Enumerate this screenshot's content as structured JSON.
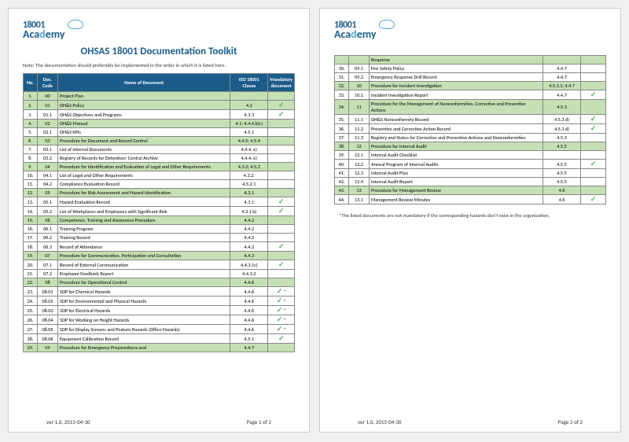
{
  "logo": {
    "prefix": "18001",
    "p1": "Aca",
    "p2": "d",
    "p3": "emy"
  },
  "title": "OHSAS 18001 Documentation Toolkit",
  "note": "Note: The documentation should preferably be implemented in the order in which it is listed here.",
  "headers": {
    "no": "No.",
    "code": "Doc. Code",
    "name": "Name of Document",
    "clause": "ISO 18001 Clause",
    "mand": "Mandatory document"
  },
  "rows1": [
    {
      "no": "1.",
      "code": "00",
      "name": "Project Plan",
      "clause": "",
      "mand": "",
      "hl": true
    },
    {
      "no": "2.",
      "code": "01",
      "name": "OH&S Policy",
      "clause": "4.2",
      "mand": "✓",
      "hl": true
    },
    {
      "no": "3.",
      "code": "01.1",
      "name": "OH&S Objectives and Programs",
      "clause": "4.3.3",
      "mand": "✓",
      "hl": false
    },
    {
      "no": "4.",
      "code": "02",
      "name": "OH&S Manual",
      "clause": "4.1; 4.4.4.b)c)",
      "mand": "",
      "hl": true
    },
    {
      "no": "5.",
      "code": "02.1",
      "name": "OH&S KPIs",
      "clause": "4.5.1",
      "mand": "",
      "hl": false
    },
    {
      "no": "6.",
      "code": "03",
      "name": "Procedure for Document and Record Control",
      "clause": "4.4.5; 4.5.4",
      "mand": "",
      "hl": true
    },
    {
      "no": "7.",
      "code": "03.1",
      "name": "List of Internal Documents",
      "clause": "4.4.4. e)",
      "mand": "",
      "hl": false
    },
    {
      "no": "8.",
      "code": "03.2",
      "name": "Registry of Records for Detention/ Central Archive",
      "clause": "4.4.4. e)",
      "mand": "",
      "hl": false
    },
    {
      "no": "9.",
      "code": "04",
      "name": "Procedure for Identification and Evaluation of Legal and Other Requirements",
      "clause": "4.3.2; 4.5.2",
      "mand": "",
      "hl": true
    },
    {
      "no": "10.",
      "code": "04.1",
      "name": "List of Legal and Other Requirements",
      "clause": "4.3.2.",
      "mand": "",
      "hl": false
    },
    {
      "no": "11.",
      "code": "04.2",
      "name": "Compliance Evaluation Record",
      "clause": "4.5.2.1",
      "mand": "",
      "hl": false
    },
    {
      "no": "12.",
      "code": "05",
      "name": "Procedure for Risk Assessment and Hazard Identification",
      "clause": "4.3.1",
      "mand": "",
      "hl": true
    },
    {
      "no": "13.",
      "code": "05.1",
      "name": "Hazard Evaluation Record",
      "clause": "4.3.1",
      "mand": "✓",
      "hl": false
    },
    {
      "no": "14.",
      "code": "05.2",
      "name": "List of Workplaces and Employees with Significant Risk",
      "clause": "4.3.1 b)",
      "mand": "✓",
      "hl": false
    },
    {
      "no": "15.",
      "code": "06",
      "name": "Competence, Training and Awareness Procedure",
      "clause": "4.4.2",
      "mand": "",
      "hl": true
    },
    {
      "no": "16.",
      "code": "06.1",
      "name": "Training Program",
      "clause": "4.4.2",
      "mand": "",
      "hl": false
    },
    {
      "no": "17.",
      "code": "06.2",
      "name": "Training Record",
      "clause": "4.4.2",
      "mand": "",
      "hl": false
    },
    {
      "no": "18.",
      "code": "06.3",
      "name": "Record of Attendance",
      "clause": "4.4.2",
      "mand": "✓",
      "hl": false
    },
    {
      "no": "19.",
      "code": "07",
      "name": "Procedure for Communication, Participation and Consultation",
      "clause": "4.4.3",
      "mand": "",
      "hl": true
    },
    {
      "no": "20.",
      "code": "07.1",
      "name": "Record of External Communication",
      "clause": "4.4.3.1c)",
      "mand": "✓",
      "hl": false
    },
    {
      "no": "21.",
      "code": "07.2",
      "name": "Employee Feedback Report",
      "clause": "4.4.3.2",
      "mand": "",
      "hl": false
    },
    {
      "no": "22.",
      "code": "08",
      "name": "Procedure for Operational Control",
      "clause": "4.4.6",
      "mand": "",
      "hl": true
    },
    {
      "no": "23.",
      "code": "08.01",
      "name": "SOP for Chemical Hazards",
      "clause": "4.4.6",
      "mand": "✓*",
      "hl": false
    },
    {
      "no": "24.",
      "code": "08.02",
      "name": "SOP for Environmental and Physical Hazards",
      "clause": "4.4.6",
      "mand": "✓*",
      "hl": false
    },
    {
      "no": "25.",
      "code": "08.03",
      "name": "SOP for Electrical Hazards",
      "clause": "4.4.6",
      "mand": "✓*",
      "hl": false
    },
    {
      "no": "26.",
      "code": "08.04",
      "name": "SOP for Working on Height Hazards",
      "clause": "4.4.6",
      "mand": "✓*",
      "hl": false
    },
    {
      "no": "27.",
      "code": "08.05",
      "name": "SOP for Display Screens and Posture Hazards (Office Hazards)",
      "clause": "4.4.6",
      "mand": "✓*",
      "hl": false
    },
    {
      "no": "28.",
      "code": "08.06",
      "name": "Equipment Calibration Record",
      "clause": "4.5.1",
      "mand": "✓",
      "hl": false
    },
    {
      "no": "29.",
      "code": "09",
      "name": "Procedure for Emergency Preparedness and",
      "clause": "4.4.7",
      "mand": "",
      "hl": true
    }
  ],
  "rows2": [
    {
      "no": "",
      "code": "",
      "name": "Response",
      "clause": "",
      "mand": "",
      "hl": true
    },
    {
      "no": "30.",
      "code": "09.1",
      "name": "Fire Safety Policy",
      "clause": "4.4.7",
      "mand": "",
      "hl": false
    },
    {
      "no": "31.",
      "code": "09.2",
      "name": "Emergency Response Drill Record",
      "clause": "4.4.7",
      "mand": "",
      "hl": false
    },
    {
      "no": "32.",
      "code": "10",
      "name": "Procedure for Incident Investigation",
      "clause": "4.5.3.1; 4.4.7",
      "mand": "",
      "hl": true
    },
    {
      "no": "33.",
      "code": "10.1",
      "name": "Incident Investigation Report",
      "clause": "4.4.7",
      "mand": "✓",
      "hl": false
    },
    {
      "no": "34.",
      "code": "11",
      "name": "Procedure for the Management of Nonconformities, Corrective and Preventive Actions",
      "clause": "4.5.3",
      "mand": "",
      "hl": true
    },
    {
      "no": "35.",
      "code": "11.1",
      "name": "OH&S Nonconformity Record",
      "clause": "4.5.3 d)",
      "mand": "✓",
      "hl": false
    },
    {
      "no": "36.",
      "code": "11.2",
      "name": "Preventive and Corrective Action Record",
      "clause": "4.5.3 d)",
      "mand": "✓",
      "hl": false
    },
    {
      "no": "37.",
      "code": "11.3",
      "name": "Registry and Status for Corrective and Preventive Actions and Nonconformities",
      "clause": "4.5.3",
      "mand": "",
      "hl": false
    },
    {
      "no": "38.",
      "code": "12",
      "name": "Procedure for Internal Audit",
      "clause": "4.5.5",
      "mand": "",
      "hl": true
    },
    {
      "no": "39.",
      "code": "12.1",
      "name": "Internal Audit Checklist",
      "clause": "",
      "mand": "",
      "hl": false
    },
    {
      "no": "40.",
      "code": "12.2",
      "name": "Annual Program of Internal Audits",
      "clause": "4.5.5",
      "mand": "✓",
      "hl": false
    },
    {
      "no": "41.",
      "code": "12.3",
      "name": "Internal Audit Plan",
      "clause": "4.5.5",
      "mand": "",
      "hl": false
    },
    {
      "no": "42.",
      "code": "12.4",
      "name": "Internal Audit Report",
      "clause": "4.5.5",
      "mand": "",
      "hl": false
    },
    {
      "no": "43.",
      "code": "13",
      "name": "Procedure for Management Review",
      "clause": "4.6",
      "mand": "",
      "hl": true
    },
    {
      "no": "44.",
      "code": "13.1",
      "name": "Management Review Minutes",
      "clause": "4.6",
      "mand": "✓",
      "hl": false
    }
  ],
  "footnote": "*The listed documents are not mandatory if the corresponding hazards don't exist in the organization.",
  "footer": {
    "ver": "ver 1.0, 2015-04-30",
    "p1": "Page 1 of 2",
    "p2": "Page 2 of 2"
  },
  "colors": {
    "header_bg": "#1b5c8a",
    "highlight_bg": "#c5e0b4",
    "check_color": "#4caf50",
    "logo_blue": "#1b5c8a",
    "logo_light": "#5aa3d0"
  }
}
